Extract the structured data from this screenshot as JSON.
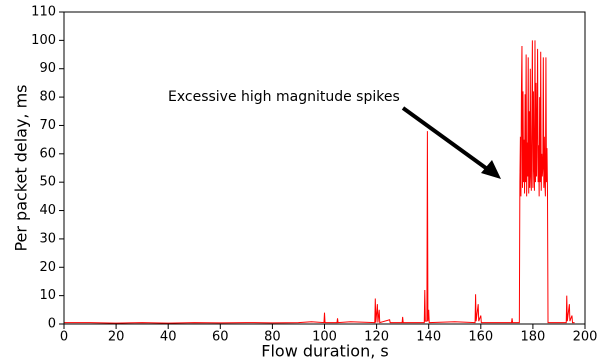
{
  "chart_data": {
    "type": "line",
    "xlabel": "Flow duration, s",
    "ylabel": "Per packet delay, ms",
    "annotation": "Excessive high magnitude spikes",
    "color": "#ff0000",
    "xlim": [
      0,
      200
    ],
    "xticks": [
      0,
      20,
      40,
      60,
      80,
      100,
      120,
      140,
      160,
      180,
      200
    ],
    "ylim": [
      0,
      110
    ],
    "yticks": [
      0,
      10,
      20,
      30,
      40,
      50,
      60,
      70,
      80,
      90,
      100,
      110
    ],
    "x": [
      0,
      10,
      20,
      30,
      40,
      50,
      60,
      70,
      80,
      90,
      95,
      99.8,
      100,
      100.2,
      104.8,
      105,
      105.2,
      110,
      119.3,
      119.5,
      119.7,
      120.3,
      120.5,
      121,
      121.2,
      125,
      125.2,
      129.8,
      130,
      130.2,
      138.3,
      138.5,
      138.7,
      139.3,
      139.5,
      139.7,
      140,
      140.2,
      150,
      157.8,
      158,
      158.2,
      159,
      159.2,
      160,
      160.2,
      165,
      171.8,
      172,
      172.2,
      174.8,
      175,
      175.2,
      175.4,
      175.6,
      175.8,
      176,
      176.2,
      176.4,
      176.6,
      176.8,
      177,
      177.2,
      177.4,
      177.6,
      177.8,
      178,
      178.2,
      178.4,
      178.6,
      178.8,
      179,
      179.2,
      179.4,
      179.6,
      179.8,
      180,
      180.2,
      180.4,
      180.6,
      180.8,
      181,
      181.2,
      181.4,
      181.6,
      181.8,
      182,
      182.2,
      182.4,
      182.6,
      182.8,
      183,
      183.2,
      183.4,
      183.6,
      183.8,
      184,
      184.2,
      184.4,
      184.6,
      184.8,
      185,
      185.2,
      185.4,
      185.6,
      185.8,
      190,
      192.8,
      193,
      193.2,
      194,
      194.2,
      195,
      195.2,
      196
    ],
    "values": [
      0.5,
      0.5,
      0.3,
      0.5,
      0.3,
      0.5,
      0.4,
      0.5,
      0.4,
      0.5,
      0.8,
      0.5,
      4,
      0.5,
      0.5,
      2,
      0.5,
      0.8,
      0.5,
      9,
      0.5,
      7,
      0.5,
      5,
      0.5,
      1.5,
      0.5,
      0.5,
      2.5,
      0.5,
      0.5,
      12,
      1,
      1,
      68,
      1,
      5,
      0.5,
      0.8,
      0.5,
      10.5,
      1,
      7,
      1,
      3,
      0.5,
      0.5,
      0.5,
      2,
      0.5,
      0.5,
      50,
      66,
      45,
      82,
      98,
      48,
      82,
      50,
      65,
      46,
      81,
      50,
      95,
      45,
      64,
      52,
      94,
      46,
      75,
      48,
      90,
      52,
      47,
      72,
      100,
      48,
      82,
      55,
      47,
      100,
      50,
      85,
      52,
      70,
      97,
      50,
      63,
      45,
      80,
      50,
      96,
      47,
      60,
      52,
      55,
      94,
      48,
      66,
      50,
      45,
      94,
      50,
      62,
      47,
      0.5,
      0.5,
      0.5,
      10,
      1,
      7,
      1,
      3,
      0.5,
      0.5
    ]
  }
}
